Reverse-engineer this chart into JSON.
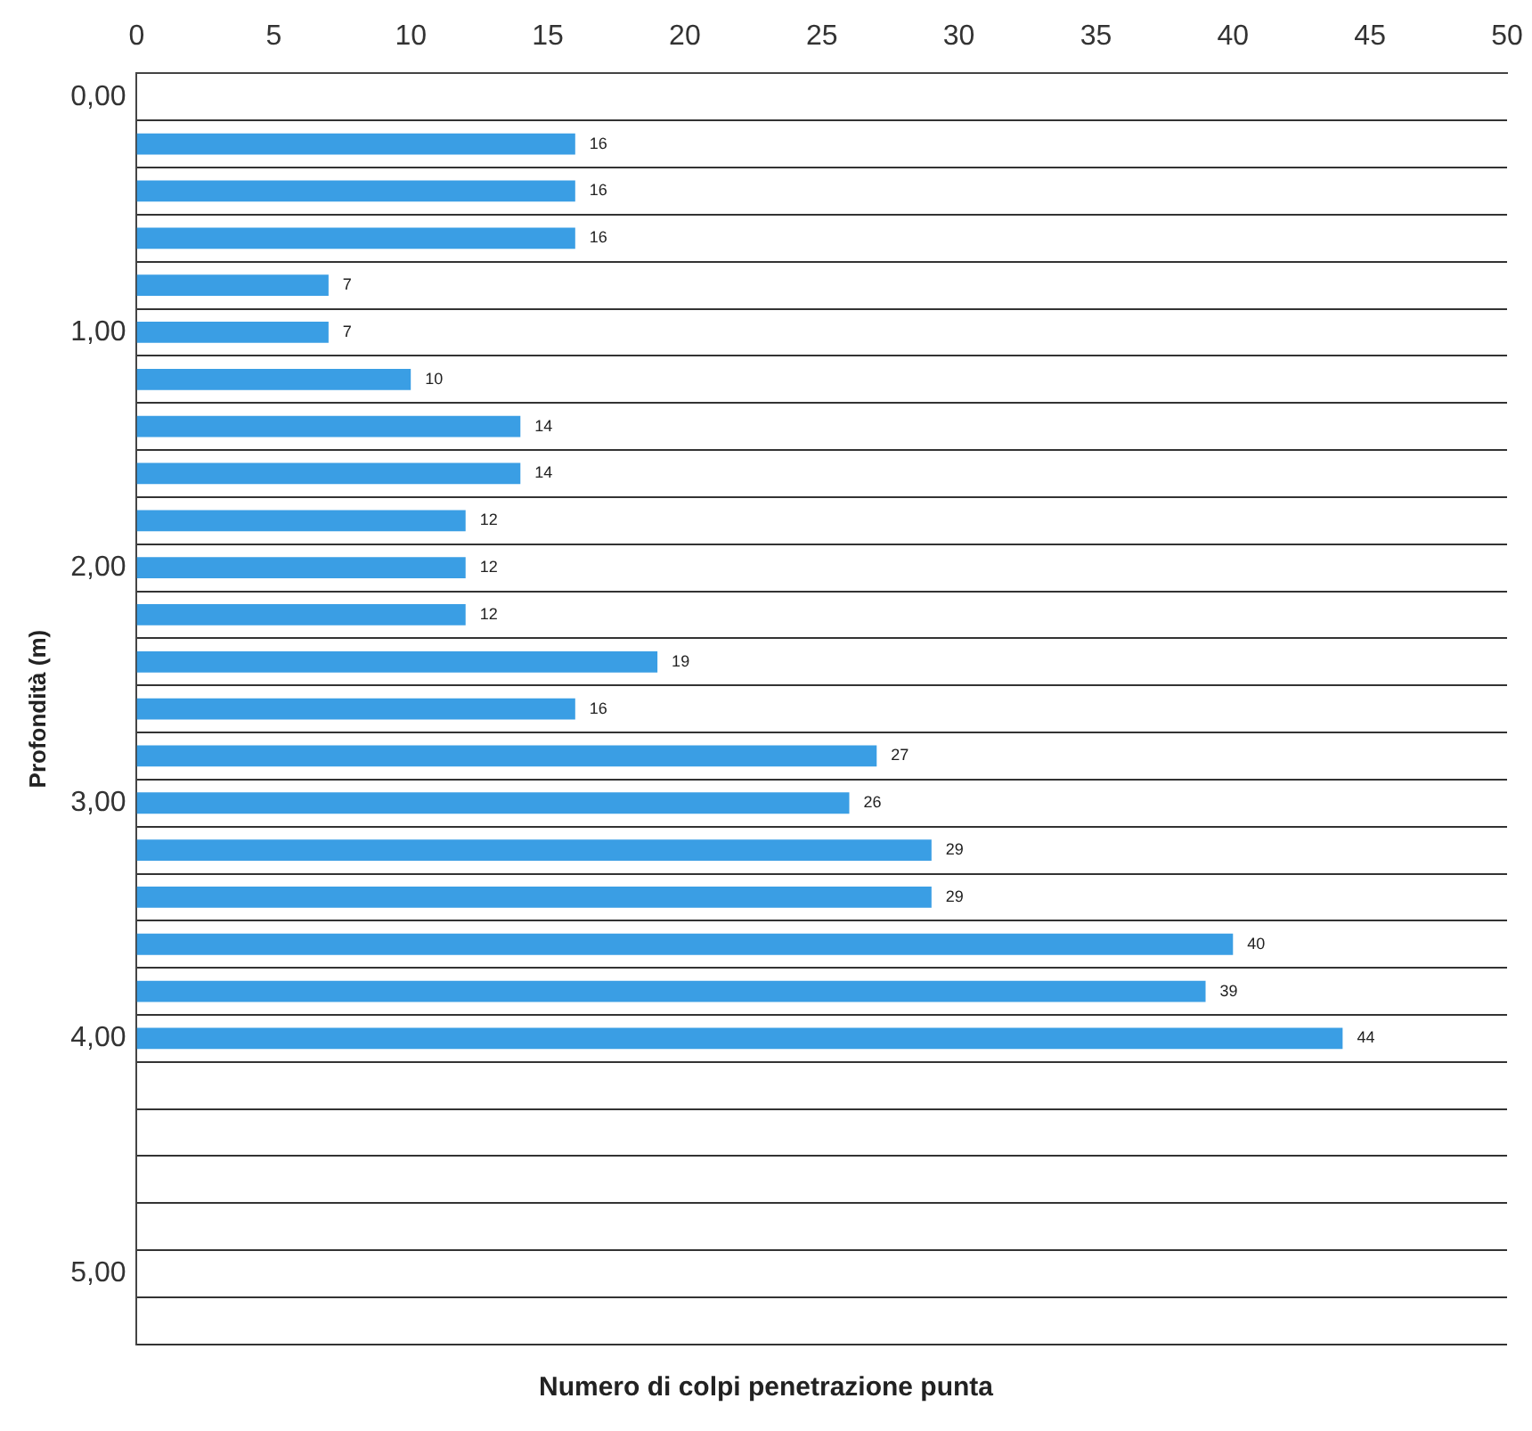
{
  "chart_data": {
    "type": "bar",
    "orientation": "horizontal",
    "xlabel": "Numero di colpi penetrazione punta",
    "ylabel": "Profondità (m)",
    "categories": [
      "0,00",
      null,
      null,
      null,
      null,
      "1,00",
      null,
      null,
      null,
      null,
      "2,00",
      null,
      null,
      null,
      null,
      "3,00",
      null,
      null,
      null,
      null,
      "4,00",
      null,
      null,
      null,
      null,
      "5,00",
      null
    ],
    "values": [
      null,
      16,
      16,
      16,
      7,
      7,
      10,
      14,
      14,
      12,
      12,
      12,
      19,
      16,
      27,
      26,
      29,
      29,
      40,
      39,
      44,
      null,
      null,
      null,
      null,
      null,
      null
    ],
    "color": "#3a9ee4",
    "xlim": [
      0,
      50
    ],
    "xticks": [
      0,
      5,
      10,
      15,
      20,
      25,
      30,
      35,
      40,
      45,
      50
    ],
    "grid": "y",
    "data_labels": true
  }
}
